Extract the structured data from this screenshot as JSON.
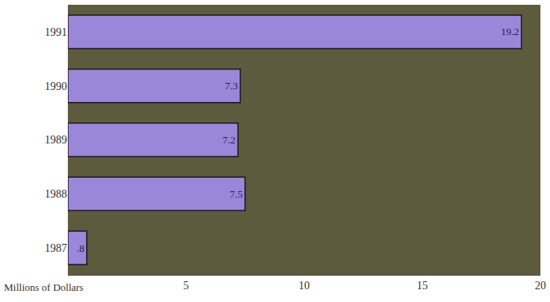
{
  "chart_data": {
    "type": "bar",
    "orientation": "horizontal",
    "categories": [
      "1991",
      "1990",
      "1989",
      "1988",
      "1987"
    ],
    "values": [
      19.2,
      7.3,
      7.2,
      7.5,
      0.8
    ],
    "value_labels": [
      "19.2",
      "7.3",
      "7.2",
      "7.5",
      ".8"
    ],
    "data_labels": true,
    "color": "#9b87d9",
    "x_label": "Millions of Dollars",
    "xlim": [
      0,
      20
    ],
    "xticks": [
      5,
      10,
      15,
      20
    ],
    "grid": false
  }
}
